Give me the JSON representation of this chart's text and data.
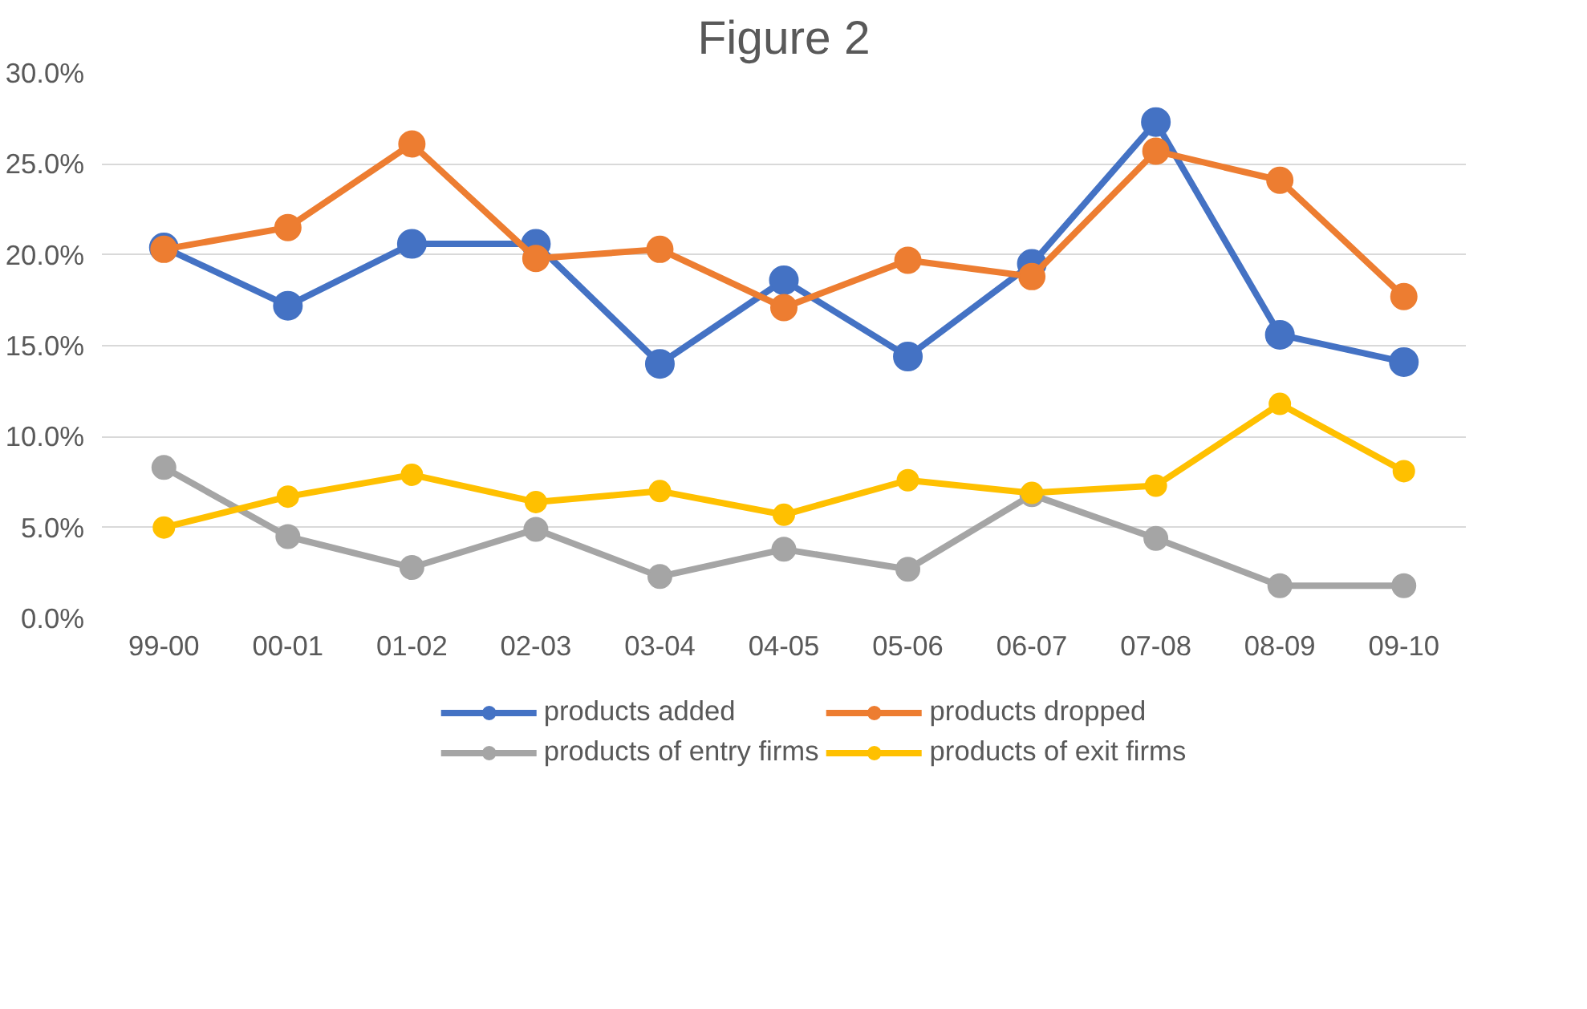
{
  "chart_data": {
    "type": "line",
    "title": "Figure 2",
    "categories": [
      "99-00",
      "00-01",
      "01-02",
      "02-03",
      "03-04",
      "04-05",
      "05-06",
      "06-07",
      "07-08",
      "08-09",
      "09-10"
    ],
    "series": [
      {
        "name": "products added",
        "color": "#4472c4",
        "values": [
          20.4,
          17.2,
          20.6,
          20.6,
          14.0,
          18.6,
          14.4,
          19.5,
          27.3,
          15.6,
          14.1
        ]
      },
      {
        "name": "products dropped",
        "color": "#ed7d31",
        "values": [
          20.3,
          21.5,
          26.1,
          19.8,
          20.3,
          17.1,
          19.7,
          18.8,
          25.7,
          24.1,
          17.7
        ]
      },
      {
        "name": "products of entry firms",
        "color": "#a5a5a5",
        "values": [
          8.3,
          4.5,
          2.8,
          4.9,
          2.3,
          3.8,
          2.7,
          6.8,
          4.4,
          1.8,
          1.8
        ]
      },
      {
        "name": "products of exit firms",
        "color": "#ffc000",
        "values": [
          5.0,
          6.7,
          7.9,
          6.4,
          7.0,
          5.7,
          7.6,
          6.9,
          7.3,
          11.8,
          8.1
        ]
      }
    ],
    "ylim": [
      0,
      30
    ],
    "yticks": [
      {
        "value": 0,
        "label": "0.0%"
      },
      {
        "value": 5,
        "label": "5.0%"
      },
      {
        "value": 10,
        "label": "10.0%"
      },
      {
        "value": 15,
        "label": "15.0%"
      },
      {
        "value": 20,
        "label": "20.0%"
      },
      {
        "value": 25,
        "label": "25.0%"
      },
      {
        "value": 30,
        "label": "30.0%"
      }
    ],
    "grid": "y",
    "legend": "bottom",
    "marker": "circle",
    "line_style": "solid"
  }
}
